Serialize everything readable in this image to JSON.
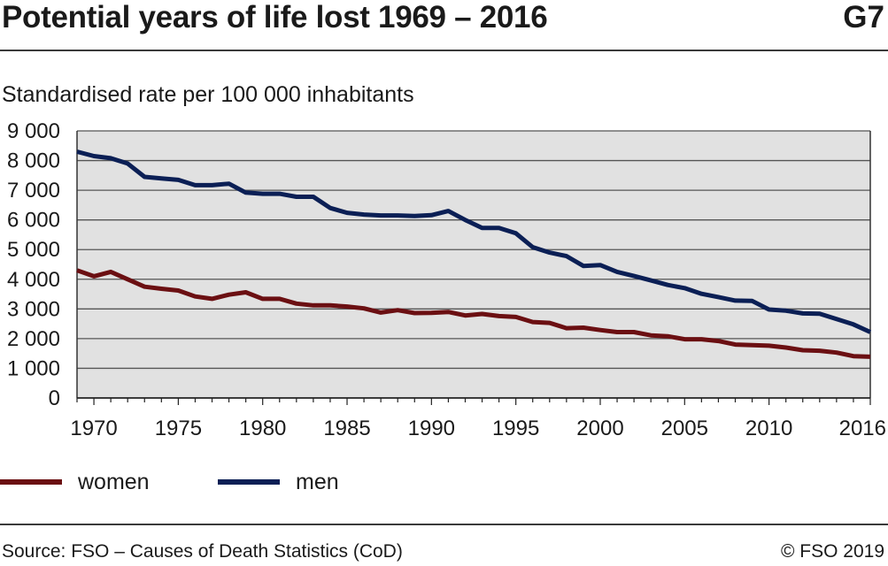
{
  "header": {
    "title": "Potential years of life lost 1969 – 2016",
    "chart_id": "G7"
  },
  "footer": {
    "source": "Source: FSO – Causes of Death Statistics (CoD)",
    "copyright": "© FSO 2019"
  },
  "chart_data": {
    "type": "line",
    "title": "Potential years of life lost 1969 – 2016",
    "subtitle": "Standardised rate per 100 000 inhabitants",
    "xlabel": "",
    "ylabel": "Standardised rate per 100 000 inhabitants",
    "xlim": [
      1969,
      2016
    ],
    "ylim": [
      0,
      9000
    ],
    "y_ticks": [
      0,
      1000,
      2000,
      3000,
      4000,
      5000,
      6000,
      7000,
      8000,
      9000
    ],
    "y_tick_labels": [
      "0",
      "1 000",
      "2 000",
      "3 000",
      "4 000",
      "5 000",
      "6 000",
      "7 000",
      "8 000",
      "9 000"
    ],
    "x_ticks": [
      1970,
      1975,
      1980,
      1985,
      1990,
      1995,
      2000,
      2005,
      2010,
      2016
    ],
    "x_tick_labels": [
      "1970",
      "1975",
      "1980",
      "1985",
      "1990",
      "1995",
      "2000",
      "2005",
      "2010",
      "2016"
    ],
    "grid": true,
    "legend_position": "bottom-left",
    "x": [
      1969,
      1970,
      1971,
      1972,
      1973,
      1974,
      1975,
      1976,
      1977,
      1978,
      1979,
      1980,
      1981,
      1982,
      1983,
      1984,
      1985,
      1986,
      1987,
      1988,
      1989,
      1990,
      1991,
      1992,
      1993,
      1994,
      1995,
      1996,
      1997,
      1998,
      1999,
      2000,
      2001,
      2002,
      2003,
      2004,
      2005,
      2006,
      2007,
      2008,
      2009,
      2010,
      2011,
      2012,
      2013,
      2014,
      2015,
      2016
    ],
    "series": [
      {
        "name": "women",
        "color": "#6b0f12",
        "values": [
          4300,
          4100,
          4250,
          4000,
          3750,
          3680,
          3620,
          3420,
          3340,
          3480,
          3560,
          3340,
          3340,
          3180,
          3120,
          3120,
          3080,
          3020,
          2880,
          2960,
          2860,
          2870,
          2900,
          2780,
          2830,
          2760,
          2730,
          2560,
          2530,
          2350,
          2370,
          2290,
          2220,
          2220,
          2110,
          2080,
          1980,
          1980,
          1920,
          1800,
          1780,
          1760,
          1700,
          1610,
          1590,
          1530,
          1410,
          1390
        ]
      },
      {
        "name": "men",
        "color": "#0b1f55",
        "values": [
          8300,
          8150,
          8080,
          7900,
          7450,
          7400,
          7350,
          7170,
          7170,
          7220,
          6920,
          6880,
          6880,
          6780,
          6780,
          6400,
          6240,
          6180,
          6150,
          6150,
          6130,
          6160,
          6300,
          6000,
          5730,
          5730,
          5550,
          5080,
          4900,
          4780,
          4450,
          4480,
          4250,
          4110,
          3960,
          3810,
          3700,
          3510,
          3400,
          3280,
          3270,
          2980,
          2940,
          2850,
          2840,
          2660,
          2480,
          2220
        ]
      }
    ]
  },
  "colors": {
    "plot_background": "#e1e1e1",
    "gridline": "#555555",
    "women": "#6b0f12",
    "men": "#0b1f55"
  }
}
